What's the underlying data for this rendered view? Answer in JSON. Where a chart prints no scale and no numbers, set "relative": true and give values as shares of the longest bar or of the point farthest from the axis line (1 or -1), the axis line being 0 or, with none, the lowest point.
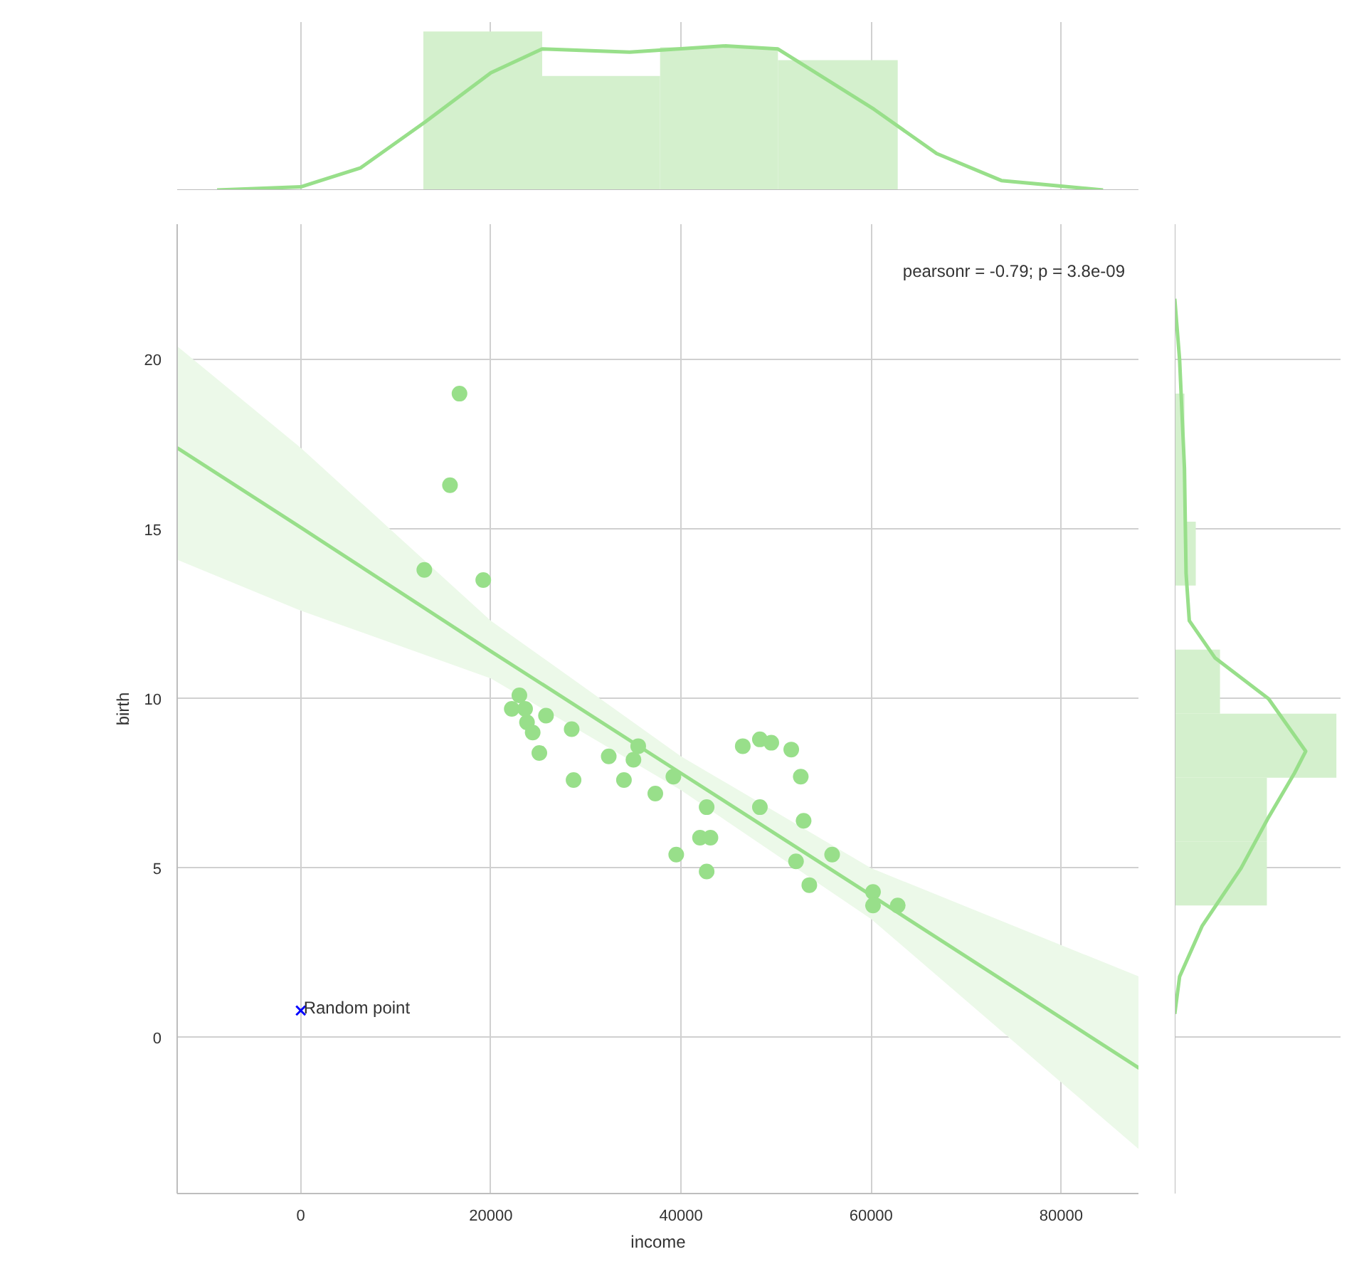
{
  "chart_data": [
    {
      "type": "histogram",
      "relative": true,
      "xlim": [
        -13000,
        88200
      ],
      "xticks": [
        0,
        20000,
        40000,
        60000,
        80000
      ],
      "tick_labels": false,
      "grid": "x",
      "series": [
        {
          "type": "histogram",
          "color": "#d4f0cd",
          "bins": [
            12900,
            25400,
            37800,
            50200,
            62800
          ],
          "values": [
            1,
            0.72,
            0.9,
            0.82
          ]
        },
        {
          "type": "line",
          "color": "#98df8a",
          "x": [
            -8800,
            0,
            6300,
            13100,
            20000,
            25400,
            34600,
            44700,
            50200,
            60300,
            66900,
            73700,
            84400
          ],
          "values": [
            0,
            0.02,
            0.14,
            0.43,
            0.74,
            0.89,
            0.87,
            0.91,
            0.89,
            0.51,
            0.23,
            0.06,
            0
          ]
        }
      ]
    },
    {
      "type": "scatter",
      "xlabel": "income",
      "ylabel": "birth",
      "xlim": [
        -13000,
        88200
      ],
      "ylim": [
        -4.6,
        24
      ],
      "xticks": [
        0,
        20000,
        40000,
        60000,
        80000
      ],
      "yticks": [
        0,
        5,
        10,
        15,
        20
      ],
      "grid": true,
      "annotations": [
        "pearsonr = -0.79; p = 3.8e-09"
      ],
      "series": [
        {
          "type": "line",
          "color": "#98df8a",
          "line_style": "solid",
          "x": [
            -13000,
            0,
            20000,
            40000,
            60000,
            88200
          ],
          "values": [
            17.4,
            15.05,
            11.4,
            7.8,
            4.2,
            -0.9
          ],
          "lower": [
            14.1,
            12.6,
            10.6,
            7.3,
            3.5,
            -3.3
          ],
          "upper": [
            20.4,
            17.4,
            12.3,
            8.3,
            5.0,
            1.8
          ]
        },
        {
          "type": "scatter",
          "color": "#98df8a",
          "marker": "circle",
          "x": [
            16700,
            15700,
            13000,
            19200,
            23000,
            22200,
            23600,
            23800,
            24400,
            25800,
            25100,
            28500,
            28700,
            32400,
            34000,
            35000,
            35500,
            37300,
            39200,
            39500,
            42700,
            42000,
            43100,
            42700,
            46500,
            48300,
            49500,
            51600,
            48300,
            52600,
            52900,
            52100,
            55900,
            53500,
            60200,
            60200,
            62800
          ],
          "values": [
            19.0,
            16.3,
            13.8,
            13.5,
            10.1,
            9.7,
            9.7,
            9.3,
            9.0,
            9.5,
            8.4,
            9.1,
            7.6,
            8.3,
            7.6,
            8.2,
            8.6,
            7.2,
            7.7,
            5.4,
            6.8,
            5.9,
            5.9,
            4.9,
            8.6,
            8.8,
            8.7,
            8.5,
            6.8,
            7.7,
            6.4,
            5.2,
            5.4,
            4.5,
            4.3,
            3.9,
            3.9
          ]
        },
        {
          "type": "scatter",
          "name": "Random point",
          "color": "#0000ff",
          "marker": "cross",
          "x": [
            0
          ],
          "values": [
            0.8
          ]
        }
      ]
    },
    {
      "type": "histogram",
      "orientation": "horizontal",
      "relative": true,
      "ylim": [
        -4.6,
        24
      ],
      "yticks": [
        0,
        5,
        10,
        15,
        20
      ],
      "tick_labels": false,
      "grid": "y",
      "series": [
        {
          "type": "histogram",
          "color": "#d4f0cd",
          "bins": [
            3.9,
            5.79,
            7.67,
            9.56,
            11.45,
            13.34,
            15.22,
            17.11,
            19.0
          ],
          "values": [
            0.57,
            0.57,
            1,
            0.28,
            0,
            0.13,
            0.06,
            0.06
          ]
        },
        {
          "type": "line",
          "color": "#98df8a",
          "x": [
            21.8,
            20,
            16.8,
            13.7,
            12.3,
            11.2,
            10,
            8.45,
            7.8,
            6.5,
            5,
            3.3,
            1.8,
            0.7
          ],
          "values": [
            0,
            0.03,
            0.06,
            0.07,
            0.09,
            0.25,
            0.58,
            0.81,
            0.74,
            0.58,
            0.41,
            0.17,
            0.03,
            0
          ]
        }
      ]
    }
  ]
}
